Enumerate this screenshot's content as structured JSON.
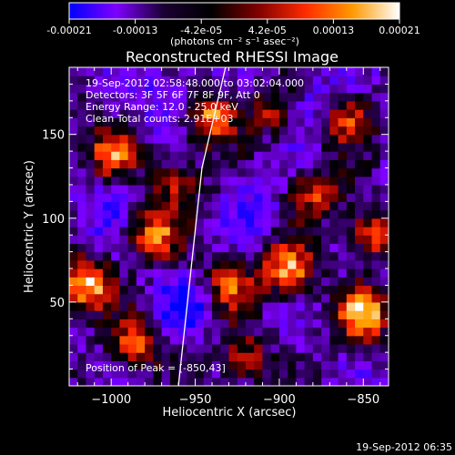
{
  "colorbar": {
    "tick_labels": [
      "-0.00021",
      "-0.00013",
      "-4.2e-05",
      "4.2e-05",
      "0.00013",
      "0.00021"
    ],
    "min": -0.00021,
    "max": 0.00021,
    "colors": [
      "#0000ff",
      "#7f00ff",
      "#1a0033",
      "#000000",
      "#7f0000",
      "#ff2a00",
      "#ff9900",
      "#ffffff"
    ],
    "units_label": "(photons cm⁻² s⁻¹ asec⁻²)"
  },
  "chart_data": {
    "type": "heatmap",
    "title": "Reconstructed RHESSI Image",
    "xlabel": "Heliocentric X (arcsec)",
    "ylabel": "Heliocentric Y (arcsec)",
    "xlim": [
      -1025,
      -835
    ],
    "ylim": [
      0,
      190
    ],
    "x_ticks": [
      -1000,
      -950,
      -900,
      -850
    ],
    "x_tick_labels": [
      "−1000",
      "−950",
      "−900",
      "−850"
    ],
    "y_ticks": [
      50,
      100,
      150
    ],
    "y_tick_labels": [
      "50",
      "100",
      "150"
    ],
    "grid": false,
    "info_lines": [
      "19-Sep-2012 02:58:48.000 to 03:02:04.000",
      "Detectors: 3F 5F 6F 7F 8F 9F, Att 0",
      "Energy Range: 12.0 - 25.0 keV",
      "Clean    Total counts: 2.91E+03"
    ],
    "peak_label": "Position of Peak = [-850,43]",
    "limb": [
      [
        -960,
        0
      ],
      [
        -946,
        130
      ],
      [
        -932,
        190
      ]
    ],
    "hotspots": [
      {
        "x": -1015,
        "y": 60,
        "intensity": 1.0
      },
      {
        "x": -1000,
        "y": 140,
        "intensity": 0.75
      },
      {
        "x": -985,
        "y": 25,
        "intensity": 0.7
      },
      {
        "x": -975,
        "y": 90,
        "intensity": 0.8
      },
      {
        "x": -960,
        "y": 120,
        "intensity": 0.6
      },
      {
        "x": -940,
        "y": 160,
        "intensity": 0.85
      },
      {
        "x": -930,
        "y": 60,
        "intensity": 0.7
      },
      {
        "x": -920,
        "y": 15,
        "intensity": 0.6
      },
      {
        "x": -895,
        "y": 70,
        "intensity": 0.9
      },
      {
        "x": -880,
        "y": 115,
        "intensity": 0.65
      },
      {
        "x": -860,
        "y": 160,
        "intensity": 0.75
      },
      {
        "x": -850,
        "y": 43,
        "intensity": 1.0
      },
      {
        "x": -845,
        "y": 90,
        "intensity": 0.7
      },
      {
        "x": -905,
        "y": 165,
        "intensity": 0.5
      }
    ],
    "cold_regions": [
      {
        "x": -955,
        "y": 50,
        "intensity": 1.0
      },
      {
        "x": -965,
        "y": 170,
        "intensity": 0.8
      },
      {
        "x": -880,
        "y": 170,
        "intensity": 0.8
      },
      {
        "x": -1005,
        "y": 105,
        "intensity": 0.6
      },
      {
        "x": -915,
        "y": 110,
        "intensity": 0.6
      }
    ]
  },
  "footer": {
    "timestamp": "19-Sep-2012 06:35"
  }
}
